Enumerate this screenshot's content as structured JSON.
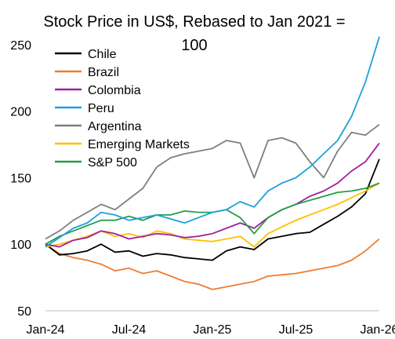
{
  "chart_data": {
    "type": "line",
    "title_line1": "Stock Price in US$, Rebased to Jan 2021 =",
    "title_line2": "100",
    "xlabel": "",
    "ylabel": "",
    "ylim": [
      50,
      260
    ],
    "yticks": [
      50,
      100,
      150,
      200,
      250
    ],
    "x_ticks": [
      "Jan-24",
      "Jul-24",
      "Jan-25",
      "Jul-25",
      "Jan-26"
    ],
    "x": [
      "Jan-24",
      "Feb-24",
      "Mar-24",
      "Apr-24",
      "May-24",
      "Jun-24",
      "Jul-24",
      "Aug-24",
      "Sep-24",
      "Oct-24",
      "Nov-24",
      "Dec-24",
      "Jan-25",
      "Feb-25",
      "Mar-25",
      "Apr-25",
      "May-25",
      "Jun-25",
      "Jul-25",
      "Aug-25",
      "Sep-25",
      "Oct-25",
      "Nov-25",
      "Dec-25",
      "Jan-26"
    ],
    "grid": false,
    "legend_position": "top-left",
    "colors": {
      "Chile": "#000000",
      "Brazil": "#ed7d31",
      "Colombia": "#a020a0",
      "Peru": "#1ea0dc",
      "Argentina": "#7f7f7f",
      "Emerging Markets": "#ffc000",
      "S&P 500": "#22a046"
    },
    "series": [
      {
        "name": "Chile",
        "values": [
          100,
          92,
          93,
          95,
          100,
          94,
          95,
          91,
          93,
          92,
          90,
          89,
          88,
          95,
          98,
          96,
          104,
          106,
          108,
          109,
          115,
          121,
          128,
          138,
          164
        ]
      },
      {
        "name": "Brazil",
        "values": [
          100,
          93,
          90,
          88,
          85,
          80,
          82,
          78,
          80,
          76,
          72,
          70,
          66,
          68,
          70,
          72,
          76,
          77,
          78,
          80,
          82,
          84,
          88,
          95,
          104
        ]
      },
      {
        "name": "Colombia",
        "values": [
          100,
          98,
          103,
          105,
          110,
          108,
          104,
          106,
          108,
          107,
          105,
          106,
          108,
          112,
          116,
          112,
          120,
          126,
          130,
          136,
          140,
          146,
          155,
          162,
          176
        ]
      },
      {
        "name": "Peru",
        "values": [
          98,
          105,
          112,
          116,
          124,
          122,
          118,
          120,
          122,
          119,
          116,
          120,
          124,
          126,
          132,
          128,
          140,
          146,
          150,
          158,
          168,
          178,
          196,
          222,
          256
        ]
      },
      {
        "name": "Argentina",
        "values": [
          104,
          110,
          118,
          124,
          130,
          126,
          134,
          142,
          158,
          165,
          168,
          170,
          172,
          178,
          176,
          150,
          178,
          180,
          176,
          162,
          150,
          170,
          184,
          182,
          190
        ]
      },
      {
        "name": "Emerging Markets",
        "values": [
          98,
          100,
          103,
          106,
          110,
          106,
          108,
          105,
          110,
          108,
          104,
          103,
          102,
          104,
          106,
          98,
          108,
          113,
          118,
          122,
          126,
          130,
          135,
          140,
          146
        ]
      },
      {
        "name": "S&P 500",
        "values": [
          100,
          106,
          110,
          114,
          118,
          118,
          121,
          118,
          122,
          122,
          125,
          124,
          124,
          126,
          120,
          108,
          120,
          126,
          130,
          133,
          136,
          139,
          140,
          142,
          146
        ]
      }
    ]
  }
}
